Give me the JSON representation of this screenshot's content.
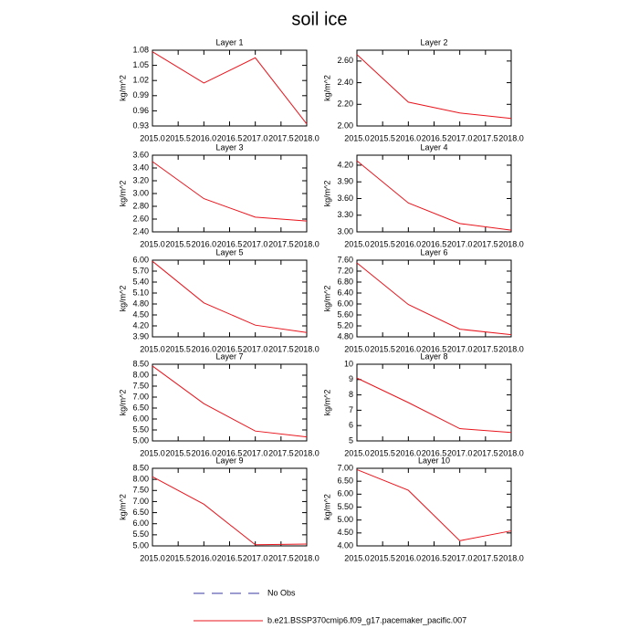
{
  "title": "soil ice",
  "legend": [
    {
      "name": "No Obs",
      "color": "#3a3aa0",
      "dash": true
    },
    {
      "name": "b.e21.BSSP370cmip6.f09_g17.pacemaker_pacific.007",
      "color": "#e8141c",
      "dash": false
    }
  ],
  "chart_data": [
    {
      "type": "line",
      "title": "Layer 1",
      "y_label": "kg/m^2",
      "x": [
        2015,
        2016,
        2017,
        2018
      ],
      "xlim": [
        2015,
        2018
      ],
      "xticks": [
        {
          "value": 2015,
          "label": "2015.0"
        },
        {
          "value": 2015.5,
          "label": "2015.5"
        },
        {
          "value": 2016,
          "label": "2016.0"
        },
        {
          "value": 2016.5,
          "label": "2016.5"
        },
        {
          "value": 2017,
          "label": "2017.0"
        },
        {
          "value": 2017.5,
          "label": "2017.5"
        },
        {
          "value": 2018,
          "label": "2018.0"
        }
      ],
      "ylim": [
        0.93,
        1.08
      ],
      "yticks": [
        0.93,
        0.96,
        0.99,
        1.02,
        1.05,
        1.08
      ],
      "series": [
        {
          "name": "b.e21.BSSP370cmip6.f09_g17.pacemaker_pacific.007",
          "color": "#e8141c",
          "values": [
            1.077,
            1.015,
            1.065,
            0.934
          ]
        }
      ]
    },
    {
      "type": "line",
      "title": "Layer 2",
      "y_label": "kg/m^2",
      "x": [
        2015,
        2016,
        2017,
        2018
      ],
      "xlim": [
        2015,
        2018
      ],
      "xticks": [
        {
          "value": 2015,
          "label": "2015.0"
        },
        {
          "value": 2015.5,
          "label": "2015.5"
        },
        {
          "value": 2016,
          "label": "2016.0"
        },
        {
          "value": 2016.5,
          "label": "2016.5"
        },
        {
          "value": 2017,
          "label": "2017.0"
        },
        {
          "value": 2017.5,
          "label": "2017.5"
        },
        {
          "value": 2018,
          "label": "2018.0"
        }
      ],
      "ylim": [
        2.0,
        2.7
      ],
      "yticks": [
        {
          "value": 2.0,
          "label": "2.00"
        },
        {
          "value": 2.2,
          "label": "2.20"
        },
        {
          "value": 2.4,
          "label": "2.40"
        },
        {
          "value": 2.6,
          "label": "2.60"
        }
      ],
      "series": [
        {
          "name": "b.e21.BSSP370cmip6.f09_g17.pacemaker_pacific.007",
          "color": "#e8141c",
          "values": [
            2.66,
            2.22,
            2.12,
            2.07
          ]
        }
      ]
    },
    {
      "type": "line",
      "title": "Layer 3",
      "y_label": "kg/m^2",
      "x": [
        2015,
        2016,
        2017,
        2018
      ],
      "xlim": [
        2015,
        2018
      ],
      "xticks": [
        {
          "value": 2015,
          "label": "2015.0"
        },
        {
          "value": 2015.5,
          "label": "2015.5"
        },
        {
          "value": 2016,
          "label": "2016.0"
        },
        {
          "value": 2016.5,
          "label": "2016.5"
        },
        {
          "value": 2017,
          "label": "2017.0"
        },
        {
          "value": 2017.5,
          "label": "2017.5"
        },
        {
          "value": 2018,
          "label": "2018.0"
        }
      ],
      "ylim": [
        2.4,
        3.6
      ],
      "yticks": [
        {
          "value": 2.4,
          "label": "2.40"
        },
        {
          "value": 2.6,
          "label": "2.60"
        },
        {
          "value": 2.8,
          "label": "2.80"
        },
        {
          "value": 3.0,
          "label": "3.00"
        },
        {
          "value": 3.2,
          "label": "3.20"
        },
        {
          "value": 3.4,
          "label": "3.40"
        },
        {
          "value": 3.6,
          "label": "3.60"
        }
      ],
      "series": [
        {
          "name": "b.e21.BSSP370cmip6.f09_g17.pacemaker_pacific.007",
          "color": "#e8141c",
          "values": [
            3.5,
            2.92,
            2.63,
            2.57
          ]
        }
      ]
    },
    {
      "type": "line",
      "title": "Layer 4",
      "y_label": "kg/m^2",
      "x": [
        2015,
        2016,
        2017,
        2018
      ],
      "xlim": [
        2015,
        2018
      ],
      "xticks": [
        {
          "value": 2015,
          "label": "2015.0"
        },
        {
          "value": 2015.5,
          "label": "2015.5"
        },
        {
          "value": 2016,
          "label": "2016.0"
        },
        {
          "value": 2016.5,
          "label": "2016.5"
        },
        {
          "value": 2017,
          "label": "2017.0"
        },
        {
          "value": 2017.5,
          "label": "2017.5"
        },
        {
          "value": 2018,
          "label": "2018.0"
        }
      ],
      "ylim": [
        3.0,
        4.38
      ],
      "yticks": [
        {
          "value": 3.0,
          "label": "3.00"
        },
        {
          "value": 3.3,
          "label": "3.30"
        },
        {
          "value": 3.6,
          "label": "3.60"
        },
        {
          "value": 3.9,
          "label": "3.90"
        },
        {
          "value": 4.2,
          "label": "4.20"
        }
      ],
      "series": [
        {
          "name": "b.e21.BSSP370cmip6.f09_g17.pacemaker_pacific.007",
          "color": "#e8141c",
          "values": [
            4.28,
            3.52,
            3.15,
            3.03
          ]
        }
      ]
    },
    {
      "type": "line",
      "title": "Layer 5",
      "y_label": "kg/m^2",
      "x": [
        2015,
        2016,
        2017,
        2018
      ],
      "xlim": [
        2015,
        2018
      ],
      "xticks": [
        {
          "value": 2015,
          "label": "2015.0"
        },
        {
          "value": 2015.5,
          "label": "2015.5"
        },
        {
          "value": 2016,
          "label": "2016.0"
        },
        {
          "value": 2016.5,
          "label": "2016.5"
        },
        {
          "value": 2017,
          "label": "2017.0"
        },
        {
          "value": 2017.5,
          "label": "2017.5"
        },
        {
          "value": 2018,
          "label": "2018.0"
        }
      ],
      "ylim": [
        3.9,
        6.0
      ],
      "yticks": [
        {
          "value": 3.9,
          "label": "3.90"
        },
        {
          "value": 4.2,
          "label": "4.20"
        },
        {
          "value": 4.5,
          "label": "4.50"
        },
        {
          "value": 4.8,
          "label": "4.80"
        },
        {
          "value": 5.1,
          "label": "5.10"
        },
        {
          "value": 5.4,
          "label": "5.40"
        },
        {
          "value": 5.7,
          "label": "5.70"
        },
        {
          "value": 6.0,
          "label": "6.00"
        }
      ],
      "series": [
        {
          "name": "b.e21.BSSP370cmip6.f09_g17.pacemaker_pacific.007",
          "color": "#e8141c",
          "values": [
            5.97,
            4.83,
            4.22,
            4.02
          ]
        }
      ]
    },
    {
      "type": "line",
      "title": "Layer 6",
      "y_label": "kg/m^2",
      "x": [
        2015,
        2016,
        2017,
        2018
      ],
      "xlim": [
        2015,
        2018
      ],
      "xticks": [
        {
          "value": 2015,
          "label": "2015.0"
        },
        {
          "value": 2015.5,
          "label": "2015.5"
        },
        {
          "value": 2016,
          "label": "2016.0"
        },
        {
          "value": 2016.5,
          "label": "2016.5"
        },
        {
          "value": 2017,
          "label": "2017.0"
        },
        {
          "value": 2017.5,
          "label": "2017.5"
        },
        {
          "value": 2018,
          "label": "2018.0"
        }
      ],
      "ylim": [
        4.8,
        7.6
      ],
      "yticks": [
        {
          "value": 4.8,
          "label": "4.80"
        },
        {
          "value": 5.2,
          "label": "5.20"
        },
        {
          "value": 5.6,
          "label": "5.60"
        },
        {
          "value": 6.0,
          "label": "6.00"
        },
        {
          "value": 6.4,
          "label": "6.40"
        },
        {
          "value": 6.8,
          "label": "6.80"
        },
        {
          "value": 7.2,
          "label": "7.20"
        },
        {
          "value": 7.6,
          "label": "7.60"
        }
      ],
      "series": [
        {
          "name": "b.e21.BSSP370cmip6.f09_g17.pacemaker_pacific.007",
          "color": "#e8141c",
          "values": [
            7.5,
            5.98,
            5.08,
            4.88
          ]
        }
      ]
    },
    {
      "type": "line",
      "title": "Layer 7",
      "y_label": "kg/m^2",
      "x": [
        2015,
        2016,
        2017,
        2018
      ],
      "xlim": [
        2015,
        2018
      ],
      "xticks": [
        {
          "value": 2015,
          "label": "2015.0"
        },
        {
          "value": 2015.5,
          "label": "2015.5"
        },
        {
          "value": 2016,
          "label": "2016.0"
        },
        {
          "value": 2016.5,
          "label": "2016.5"
        },
        {
          "value": 2017,
          "label": "2017.0"
        },
        {
          "value": 2017.5,
          "label": "2017.5"
        },
        {
          "value": 2018,
          "label": "2018.0"
        }
      ],
      "ylim": [
        5.0,
        8.5
      ],
      "yticks": [
        {
          "value": 5.0,
          "label": "5.00"
        },
        {
          "value": 5.5,
          "label": "5.50"
        },
        {
          "value": 6.0,
          "label": "6.00"
        },
        {
          "value": 6.5,
          "label": "6.50"
        },
        {
          "value": 7.0,
          "label": "7.00"
        },
        {
          "value": 7.5,
          "label": "7.50"
        },
        {
          "value": 8.0,
          "label": "8.00"
        },
        {
          "value": 8.5,
          "label": "8.50"
        }
      ],
      "series": [
        {
          "name": "b.e21.BSSP370cmip6.f09_g17.pacemaker_pacific.007",
          "color": "#e8141c",
          "values": [
            8.42,
            6.7,
            5.45,
            5.18
          ]
        }
      ]
    },
    {
      "type": "line",
      "title": "Layer 8",
      "y_label": "kg/m^2",
      "x": [
        2015,
        2016,
        2017,
        2018
      ],
      "xlim": [
        2015,
        2018
      ],
      "xticks": [
        {
          "value": 2015,
          "label": "2015.0"
        },
        {
          "value": 2015.5,
          "label": "2015.5"
        },
        {
          "value": 2016,
          "label": "2016.0"
        },
        {
          "value": 2016.5,
          "label": "2016.5"
        },
        {
          "value": 2017,
          "label": "2017.0"
        },
        {
          "value": 2017.5,
          "label": "2017.5"
        },
        {
          "value": 2018,
          "label": "2018.0"
        }
      ],
      "ylim": [
        5,
        10
      ],
      "yticks": [
        5,
        6,
        7,
        8,
        9,
        10
      ],
      "series": [
        {
          "name": "b.e21.BSSP370cmip6.f09_g17.pacemaker_pacific.007",
          "color": "#e8141c",
          "values": [
            9.1,
            7.5,
            5.8,
            5.55
          ]
        }
      ]
    },
    {
      "type": "line",
      "title": "Layer 9",
      "y_label": "kg/m^2",
      "x": [
        2015,
        2016,
        2017,
        2018
      ],
      "xlim": [
        2015,
        2018
      ],
      "xticks": [
        {
          "value": 2015,
          "label": "2015.0"
        },
        {
          "value": 2015.5,
          "label": "2015.5"
        },
        {
          "value": 2016,
          "label": "2016.0"
        },
        {
          "value": 2016.5,
          "label": "2016.5"
        },
        {
          "value": 2017,
          "label": "2017.0"
        },
        {
          "value": 2017.5,
          "label": "2017.5"
        },
        {
          "value": 2018,
          "label": "2018.0"
        }
      ],
      "ylim": [
        5.0,
        8.5
      ],
      "yticks": [
        {
          "value": 5.0,
          "label": "5.00"
        },
        {
          "value": 5.5,
          "label": "5.50"
        },
        {
          "value": 6.0,
          "label": "6.00"
        },
        {
          "value": 6.5,
          "label": "6.50"
        },
        {
          "value": 7.0,
          "label": "7.00"
        },
        {
          "value": 7.5,
          "label": "7.50"
        },
        {
          "value": 8.0,
          "label": "8.00"
        },
        {
          "value": 8.5,
          "label": "8.50"
        }
      ],
      "series": [
        {
          "name": "b.e21.BSSP370cmip6.f09_g17.pacemaker_pacific.007",
          "color": "#e8141c",
          "values": [
            8.12,
            6.88,
            5.05,
            5.08
          ]
        }
      ]
    },
    {
      "type": "line",
      "title": "Layer 10",
      "y_label": "kg/m^2",
      "x": [
        2015,
        2016,
        2017,
        2018
      ],
      "xlim": [
        2015,
        2018
      ],
      "xticks": [
        {
          "value": 2015,
          "label": "2015.0"
        },
        {
          "value": 2015.5,
          "label": "2015.5"
        },
        {
          "value": 2016,
          "label": "2016.0"
        },
        {
          "value": 2016.5,
          "label": "2016.5"
        },
        {
          "value": 2017,
          "label": "2017.0"
        },
        {
          "value": 2017.5,
          "label": "2017.5"
        },
        {
          "value": 2018,
          "label": "2018.0"
        }
      ],
      "ylim": [
        4.0,
        7.0
      ],
      "yticks": [
        {
          "value": 4.0,
          "label": "4.00"
        },
        {
          "value": 4.5,
          "label": "4.50"
        },
        {
          "value": 5.0,
          "label": "5.00"
        },
        {
          "value": 5.5,
          "label": "5.50"
        },
        {
          "value": 6.0,
          "label": "6.00"
        },
        {
          "value": 6.5,
          "label": "6.50"
        },
        {
          "value": 7.0,
          "label": "7.00"
        }
      ],
      "series": [
        {
          "name": "b.e21.BSSP370cmip6.f09_g17.pacemaker_pacific.007",
          "color": "#e8141c",
          "values": [
            6.95,
            6.15,
            4.2,
            4.58
          ]
        }
      ]
    }
  ]
}
